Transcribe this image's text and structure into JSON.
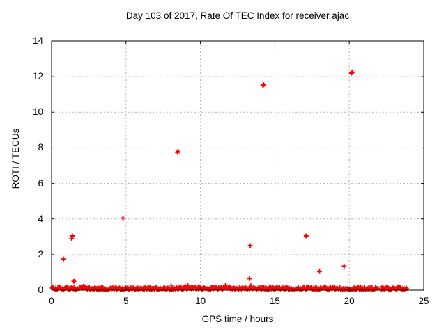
{
  "window": {
    "background": "#ffffff"
  },
  "chart_data": {
    "type": "scatter",
    "title": "Day 103 of 2017, Rate Of TEC Index for receiver ajac",
    "xlabel": "GPS time / hours",
    "ylabel": "ROTI / TECUs",
    "xlim": [
      0,
      25
    ],
    "ylim": [
      0,
      14
    ],
    "xticks": [
      0,
      5,
      10,
      15,
      20,
      25
    ],
    "yticks": [
      0,
      2,
      4,
      6,
      8,
      10,
      12,
      14
    ],
    "grid": "dotted, at every major tick",
    "legend": "none",
    "marker": "plus",
    "colors": {
      "series": "#ff0000",
      "grid": "#b3b3b3",
      "axis": "#000000",
      "text": "#000000",
      "background": "#ffffff"
    },
    "series_name": "ROTI",
    "outlier_points": [
      [
        0.8,
        1.75
      ],
      [
        1.35,
        2.9
      ],
      [
        1.4,
        3.05
      ],
      [
        1.5,
        0.5
      ],
      [
        4.8,
        4.05
      ],
      [
        8.45,
        7.75
      ],
      [
        8.5,
        7.8
      ],
      [
        13.3,
        0.65
      ],
      [
        13.35,
        2.5
      ],
      [
        14.2,
        11.5
      ],
      [
        14.25,
        11.55
      ],
      [
        17.1,
        3.05
      ],
      [
        18.0,
        1.05
      ],
      [
        19.65,
        1.35
      ],
      [
        20.15,
        12.2
      ],
      [
        20.2,
        12.25
      ]
    ],
    "baseline_band": {
      "description": "dense quasi-continuous band of plus markers hugging ROTI ~ 0 for the whole day",
      "x_start": 0.02,
      "x_end": 23.88,
      "y_min": 0.0,
      "y_max": 0.2,
      "occasional_peaks_up_to": 0.3,
      "gaps": [
        [
          21.97,
          22.12
        ]
      ]
    }
  }
}
